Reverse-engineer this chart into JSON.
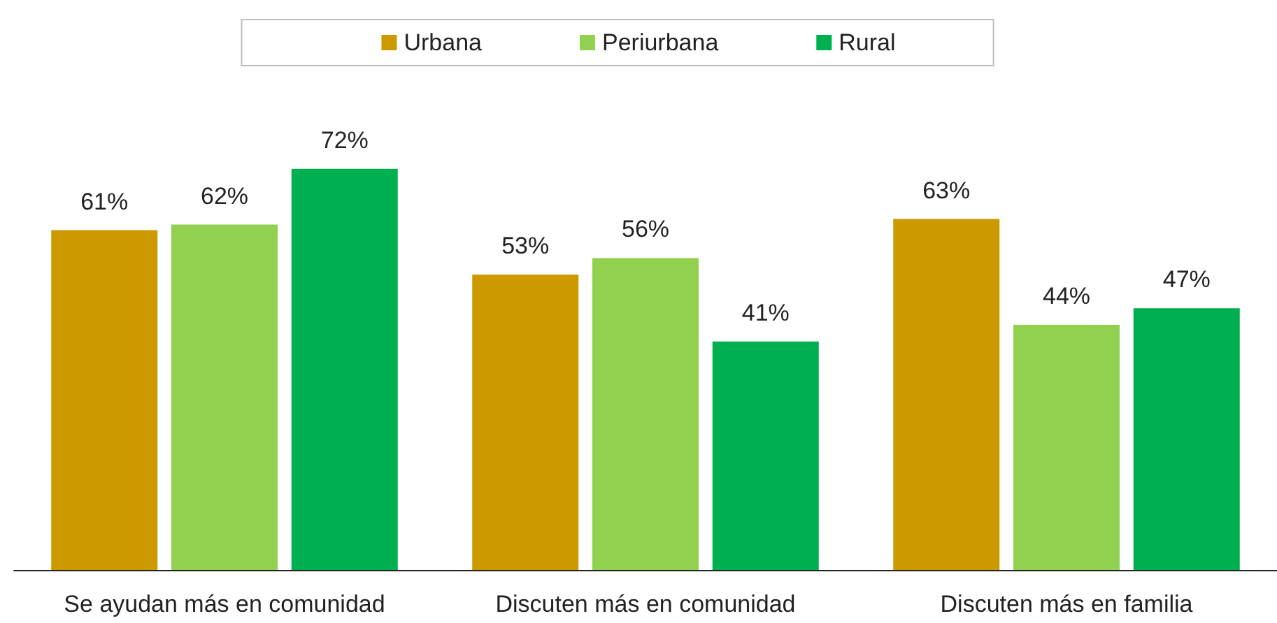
{
  "chart_data": {
    "type": "bar",
    "categories": [
      "Se ayudan más en comunidad",
      "Discuten más en comunidad",
      "Discuten más en familia"
    ],
    "series": [
      {
        "name": "Urbana",
        "color": "#cc9900",
        "values": [
          61,
          53,
          63
        ],
        "value_labels": [
          "61%",
          "53%",
          "63%"
        ]
      },
      {
        "name": "Periurbana",
        "color": "#92d050",
        "values": [
          62,
          56,
          44
        ],
        "value_labels": [
          "62%",
          "56%",
          "44%"
        ]
      },
      {
        "name": "Rural",
        "color": "#00b050",
        "values": [
          72,
          41,
          47
        ],
        "value_labels": [
          "72%",
          "41%",
          "47%"
        ]
      }
    ],
    "legend": "top",
    "grid": false
  }
}
